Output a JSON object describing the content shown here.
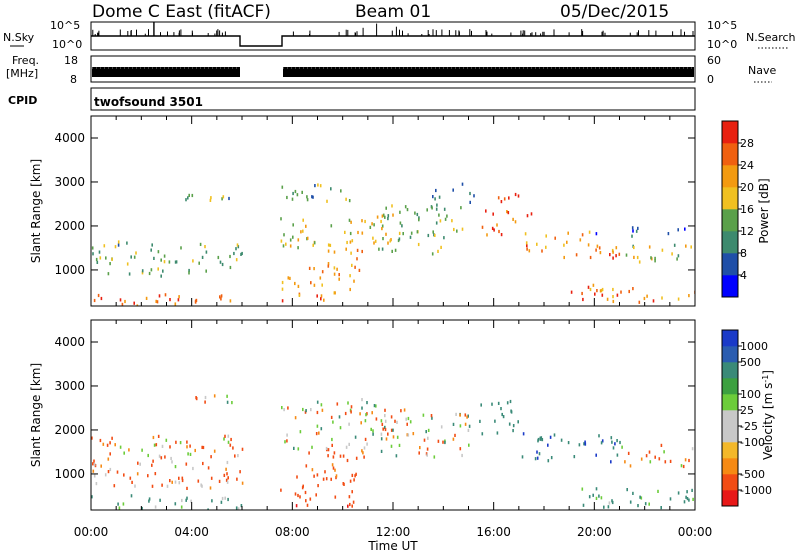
{
  "header": {
    "station": "Dome C East (fitACF)",
    "beam": "Beam 01",
    "date": "05/Dec/2015"
  },
  "top_panels": {
    "nsky_label": "N.Sky",
    "nsky_ticks": [
      "10^5",
      "10^0"
    ],
    "nsearch_label": "N.Search",
    "nsearch_ticks": [
      "10^5",
      "10^0"
    ],
    "freq_label_1": "Freq.",
    "freq_label_2": "[MHz]",
    "freq_ticks": [
      "18",
      "8"
    ],
    "nave_label": "Nave",
    "nave_ticks": [
      "60",
      "0"
    ],
    "cpid_label": "CPID",
    "cpid_value": "twofsound 3501"
  },
  "time_axis": {
    "label": "Time UT",
    "ticks": [
      "00:00",
      "04:00",
      "08:00",
      "12:00",
      "16:00",
      "20:00",
      "00:00"
    ]
  },
  "colors": {
    "power_scale": [
      "#0000ff",
      "#1f4fa8",
      "#3d8a6e",
      "#5aa04a",
      "#f0c020",
      "#f39a10",
      "#f06010",
      "#e82010"
    ],
    "velocity_scale": [
      "#e81818",
      "#f24c14",
      "#f68a14",
      "#f3b82a",
      "#c8c8c8",
      "#c8c8c8",
      "#6ccc3a",
      "#3ca040",
      "#3a8a78",
      "#2a5cb0",
      "#1a3ac8"
    ]
  },
  "chart_data": [
    {
      "type": "heatmap",
      "name": "power",
      "ylabel": "Slant Range [km]",
      "xlabel": "",
      "xlim_hours": [
        0,
        24
      ],
      "ylim_km": [
        180,
        4500
      ],
      "yticks": [
        "1000",
        "2000",
        "3000",
        "4000"
      ],
      "colorbar_label": "Power [dB]",
      "colorbar_ticks": [
        "4",
        "8",
        "12",
        "16",
        "20",
        "24",
        "28"
      ],
      "colorbar_range": [
        0,
        32
      ],
      "data_gaps_hours": [
        [
          6.0,
          7.5
        ]
      ],
      "regions": [
        {
          "t": [
            0.0,
            6.0
          ],
          "r": [
            200,
            480
          ],
          "v": 26
        },
        {
          "t": [
            0.0,
            6.0
          ],
          "r": [
            880,
            1320
          ],
          "v": 14
        },
        {
          "t": [
            0.0,
            6.0
          ],
          "r": [
            1320,
            1700
          ],
          "v": 13
        },
        {
          "t": [
            3.5,
            5.6
          ],
          "r": [
            2600,
            2900
          ],
          "v": 12
        },
        {
          "t": [
            7.5,
            10.5
          ],
          "r": [
            300,
            900
          ],
          "v": 24
        },
        {
          "t": [
            8.5,
            10.8
          ],
          "r": [
            900,
            1500
          ],
          "v": 22
        },
        {
          "t": [
            7.5,
            12.0
          ],
          "r": [
            1500,
            2300
          ],
          "v": 18
        },
        {
          "t": [
            7.5,
            10.5
          ],
          "r": [
            2500,
            3000
          ],
          "v": 12
        },
        {
          "t": [
            11.5,
            15.0
          ],
          "r": [
            1400,
            2500
          ],
          "v": 14
        },
        {
          "t": [
            13.5,
            15.5
          ],
          "r": [
            2500,
            3000
          ],
          "v": 10
        },
        {
          "t": [
            15.5,
            17.5
          ],
          "r": [
            1800,
            2800
          ],
          "v": 26
        },
        {
          "t": [
            17.0,
            21.0
          ],
          "r": [
            1300,
            1900
          ],
          "v": 24
        },
        {
          "t": [
            21.0,
            24.0
          ],
          "r": [
            1200,
            1600
          ],
          "v": 16
        },
        {
          "t": [
            20.0,
            24.0
          ],
          "r": [
            1800,
            2000
          ],
          "v": 8
        },
        {
          "t": [
            19.0,
            24.0
          ],
          "r": [
            300,
            700
          ],
          "v": 24
        }
      ]
    },
    {
      "type": "heatmap",
      "name": "velocity",
      "ylabel": "Slant Range [km]",
      "xlabel": "Time UT",
      "xlim_hours": [
        0,
        24
      ],
      "ylim_km": [
        180,
        4500
      ],
      "yticks": [
        "1000",
        "2000",
        "3000",
        "4000"
      ],
      "colorbar_label": "Velocity [m s^-1]",
      "colorbar_ticks": [
        "1000",
        "500",
        "100",
        "25",
        "-25",
        "-100",
        "-500",
        "-1000"
      ],
      "colorbar_range": [
        -1000,
        1000
      ],
      "data_gaps_hours": [
        [
          6.0,
          7.5
        ]
      ],
      "regions": [
        {
          "t": [
            0.0,
            6.0
          ],
          "r": [
            200,
            550
          ],
          "v": 150
        },
        {
          "t": [
            0.0,
            6.0
          ],
          "r": [
            700,
            1400
          ],
          "v": -150
        },
        {
          "t": [
            0.0,
            6.0
          ],
          "r": [
            1400,
            1900
          ],
          "v": -80
        },
        {
          "t": [
            3.5,
            5.6
          ],
          "r": [
            2600,
            2900
          ],
          "v": 0
        },
        {
          "t": [
            7.5,
            10.5
          ],
          "r": [
            300,
            1000
          ],
          "v": -350
        },
        {
          "t": [
            8.5,
            11.0
          ],
          "r": [
            900,
            1600
          ],
          "v": -200
        },
        {
          "t": [
            7.5,
            12.0
          ],
          "r": [
            1600,
            2800
          ],
          "v": 0
        },
        {
          "t": [
            11.5,
            15.0
          ],
          "r": [
            1400,
            2500
          ],
          "v": -40
        },
        {
          "t": [
            15.0,
            17.0
          ],
          "r": [
            1900,
            2800
          ],
          "v": 300
        },
        {
          "t": [
            17.0,
            21.0
          ],
          "r": [
            1300,
            2000
          ],
          "v": 400
        },
        {
          "t": [
            21.0,
            24.0
          ],
          "r": [
            1200,
            1700
          ],
          "v": -80
        },
        {
          "t": [
            19.0,
            24.0
          ],
          "r": [
            250,
            700
          ],
          "v": 180
        }
      ]
    }
  ]
}
